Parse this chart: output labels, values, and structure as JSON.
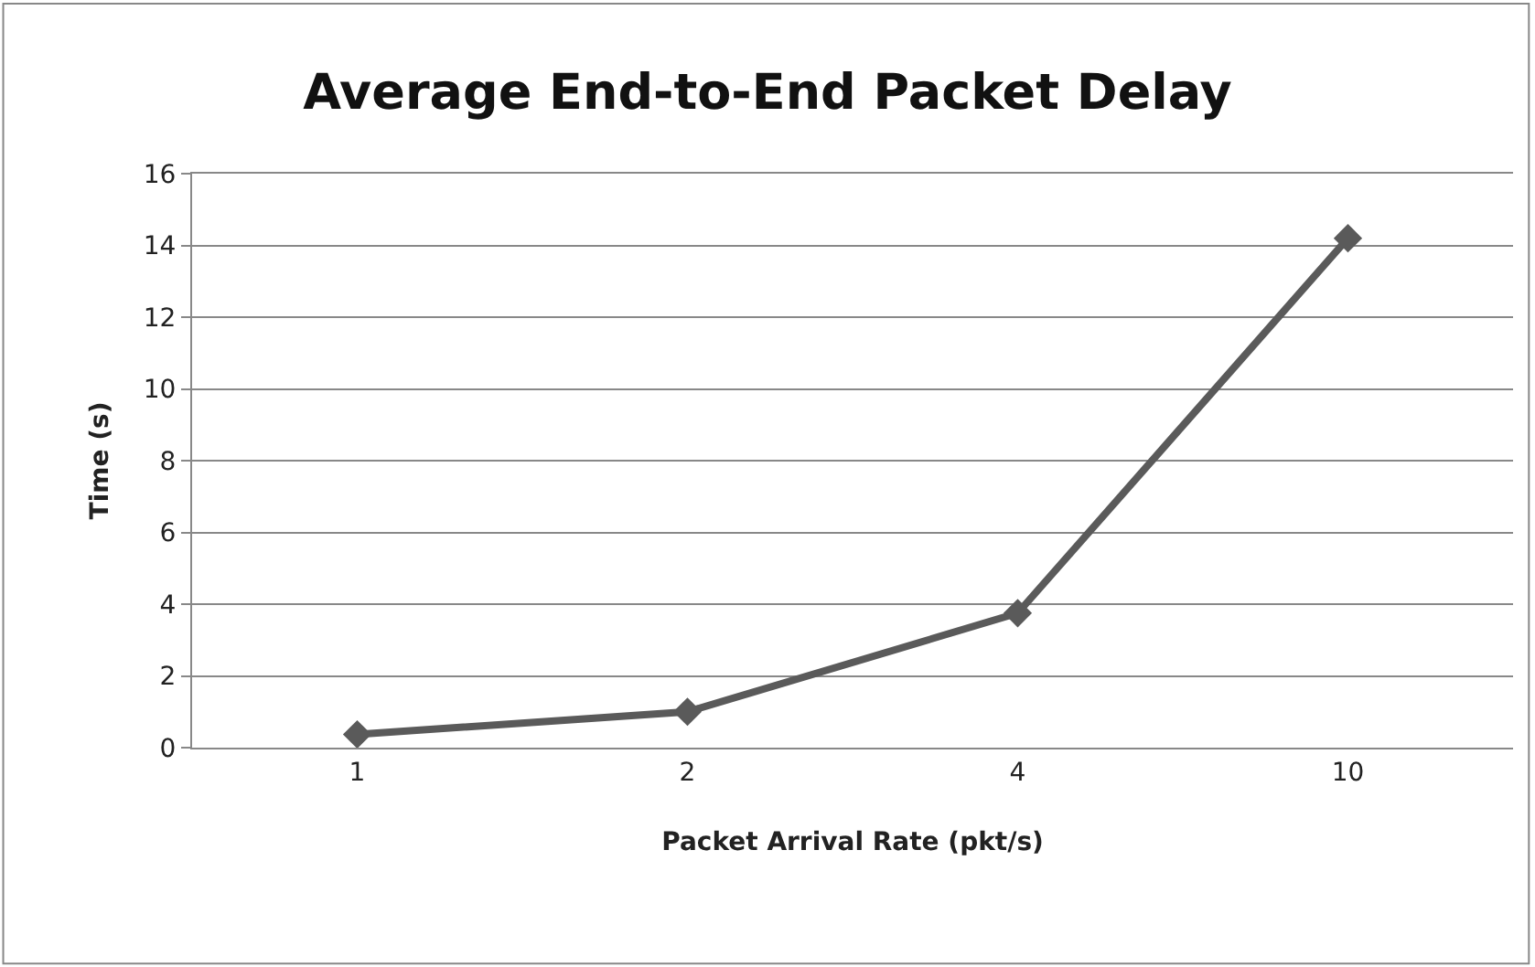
{
  "chart_data": {
    "type": "line",
    "title": "Average End-to-End Packet Delay",
    "xlabel": "Packet Arrival Rate (pkt/s)",
    "ylabel": "Time (s)",
    "categories": [
      "1",
      "2",
      "4",
      "10"
    ],
    "series": [
      {
        "color": "#5a5a5a",
        "values": [
          0.37,
          1.0,
          3.75,
          14.2
        ]
      }
    ],
    "ylim": [
      0,
      16
    ],
    "yticks": [
      0,
      2,
      4,
      6,
      8,
      10,
      12,
      14,
      16
    ],
    "grid": "y",
    "marker": "diamond",
    "line_style": "solid"
  }
}
